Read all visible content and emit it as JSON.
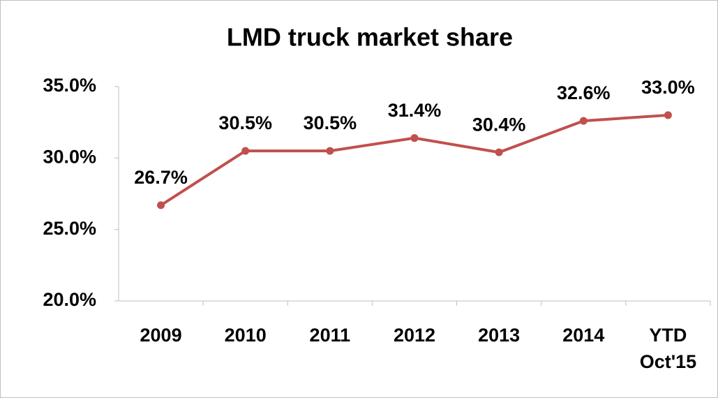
{
  "chart_data": {
    "type": "line",
    "title": "LMD truck market share",
    "categories": [
      "2009",
      "2010",
      "2011",
      "2012",
      "2013",
      "2014",
      "YTD\nOct'15"
    ],
    "values": [
      26.7,
      30.5,
      30.5,
      31.4,
      30.4,
      32.6,
      33.0
    ],
    "value_labels": [
      "26.7%",
      "30.5%",
      "30.5%",
      "31.4%",
      "30.4%",
      "32.6%",
      "33.0%"
    ],
    "color": "#c0504d",
    "ylim": [
      20,
      35
    ],
    "yticks": [
      {
        "value": 20,
        "label": "20.0%"
      },
      {
        "value": 25,
        "label": "25.0%"
      },
      {
        "value": 30,
        "label": "30.0%"
      },
      {
        "value": 35,
        "label": "35.0%"
      }
    ],
    "grid": false
  }
}
